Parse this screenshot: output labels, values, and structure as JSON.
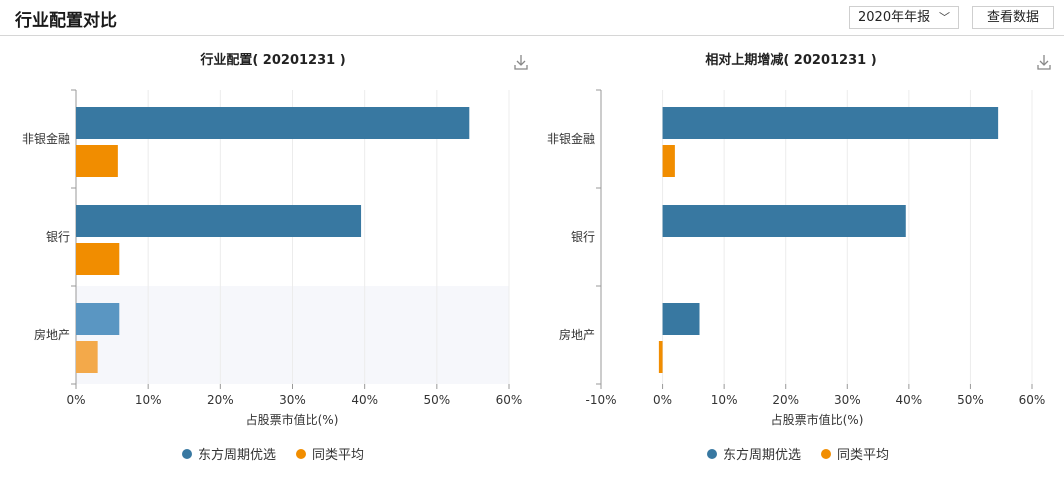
{
  "header": {
    "title": "行业配置对比",
    "period_select": "2020年年报",
    "view_data_button": "查看数据"
  },
  "colors": {
    "fund": "#3878a1",
    "fund_highlight": "#5a96c2",
    "peer": "#f18d00",
    "peer_highlight": "#f3a94a",
    "highlight_band": "#f6f7fb"
  },
  "legend": {
    "fund": "东方周期优选",
    "peer": "同类平均"
  },
  "chart_data": [
    {
      "type": "bar",
      "orientation": "horizontal",
      "title": "行业配置( 20201231 )",
      "xlabel": "占股票市值比(%)",
      "categories": [
        "非银金融",
        "银行",
        "房地产"
      ],
      "series": [
        {
          "name": "东方周期优选",
          "values": [
            54.5,
            39.5,
            6.0
          ]
        },
        {
          "name": "同类平均",
          "values": [
            5.8,
            6.0,
            3.0
          ]
        }
      ],
      "xlim": [
        0,
        60
      ],
      "ticks": [
        "0%",
        "10%",
        "20%",
        "30%",
        "40%",
        "50%",
        "60%"
      ],
      "highlighted_category": "房地产",
      "legend_position": "bottom-center",
      "grid": true
    },
    {
      "type": "bar",
      "orientation": "horizontal",
      "title": "相对上期增减( 20201231 )",
      "xlabel": "占股票市值比(%)",
      "categories": [
        "非银金融",
        "银行",
        "房地产"
      ],
      "series": [
        {
          "name": "东方周期优选",
          "values": [
            54.5,
            39.5,
            6.0
          ]
        },
        {
          "name": "同类平均",
          "values": [
            2.0,
            0,
            -0.6
          ]
        }
      ],
      "xlim": [
        -10,
        60
      ],
      "ticks": [
        "-10%",
        "0%",
        "10%",
        "20%",
        "30%",
        "40%",
        "50%",
        "60%"
      ],
      "legend_position": "bottom-center",
      "grid": true
    }
  ]
}
